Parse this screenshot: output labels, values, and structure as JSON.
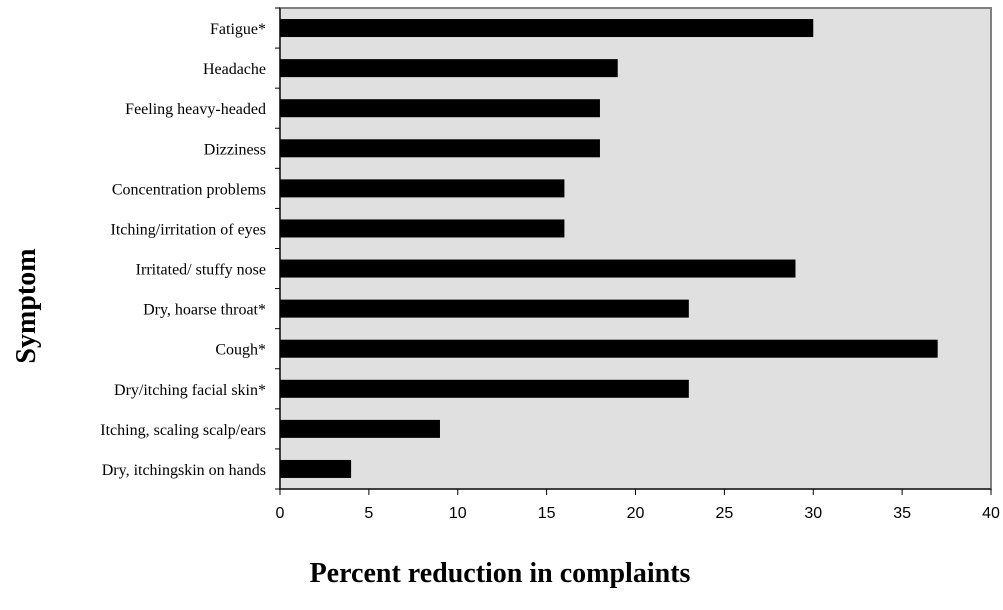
{
  "chart_data": {
    "type": "bar",
    "orientation": "horizontal",
    "categories": [
      "Fatigue*",
      "Headache",
      "Feeling heavy-headed",
      "Dizziness",
      "Concentration problems",
      "Itching/irritation of eyes",
      "Irritated/ stuffy nose",
      "Dry, hoarse throat*",
      "Cough*",
      "Dry/itching facial skin*",
      "Itching, scaling scalp/ears",
      "Dry, itchingskin on hands"
    ],
    "values": [
      30,
      19,
      18,
      18,
      16,
      16,
      29,
      23,
      37,
      23,
      9,
      4
    ],
    "title": "",
    "xlabel": "Percent reduction in complaints",
    "ylabel": "Symptom",
    "xlim": [
      0,
      40
    ],
    "xticks": [
      0,
      5,
      10,
      15,
      20,
      25,
      30,
      35,
      40
    ],
    "grid": false,
    "legend": "none",
    "colors": {
      "bar": "#000000",
      "plot_background": "#e0e0e0",
      "plot_border": "#808080",
      "axis": "#000000"
    }
  }
}
